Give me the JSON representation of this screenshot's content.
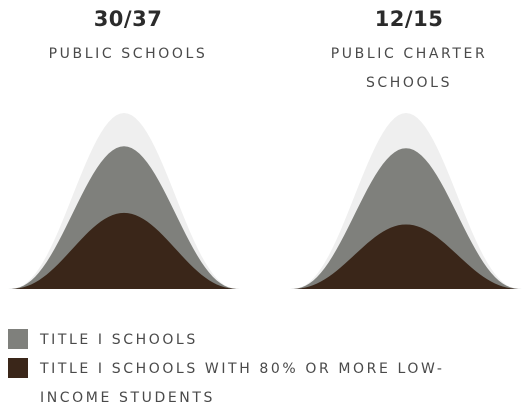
{
  "chart_data": [
    {
      "type": "area",
      "ratio": "30/37",
      "title": "PUBLIC SCHOOLS",
      "series": [
        {
          "key": "total",
          "value": 37
        },
        {
          "key": "title1",
          "value": 30
        },
        {
          "key": "title1_80",
          "value": 16
        }
      ]
    },
    {
      "type": "area",
      "ratio": "12/15",
      "title": "PUBLIC CHARTER SCHOOLS",
      "series": [
        {
          "key": "total",
          "value": 15
        },
        {
          "key": "title1",
          "value": 12
        },
        {
          "key": "title1_80",
          "value": 5.5
        }
      ]
    }
  ],
  "legend": [
    {
      "label": "TITLE I SCHOOLS",
      "color": "#7f807c"
    },
    {
      "label": "TITLE I SCHOOLS WITH 80% OR MORE LOW-INCOME STUDENTS",
      "color": "#3a2619"
    }
  ],
  "colors": {
    "total": "#efefef",
    "title1": "#7f807c",
    "title1_80": "#3a2619"
  }
}
